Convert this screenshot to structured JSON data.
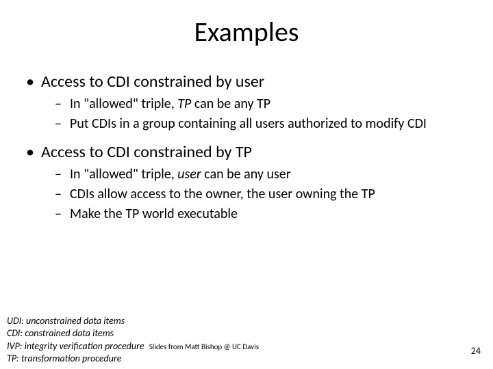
{
  "title": "Examples",
  "bullet1": "Access to CDI constrained by user",
  "b1_s1_a": "In \"allowed\" triple, ",
  "b1_s1_b": "TP",
  "b1_s1_c": " can be any TP",
  "b1_s2": "Put CDIs in a group containing all users authorized to modify CDI",
  "bullet2": "Access to CDI constrained by TP",
  "b2_s1_a": "In \"allowed\" triple, ",
  "b2_s1_b": "user",
  "b2_s1_c": " can be any user",
  "b2_s2": "CDIs allow access to the owner, the user owning the TP",
  "b2_s3": "Make the TP world executable",
  "footer_udi": "UDI: unconstrained data items",
  "footer_cdi": "CDI: constrained data items",
  "footer_ivp": "IVP: integrity verification procedure",
  "footer_tp": "TP: transformation procedure",
  "attribution": "Slides from Matt Bishop @ UC Davis",
  "page_number": "24",
  "colors": {
    "background": "#ffffff",
    "text": "#000000"
  }
}
